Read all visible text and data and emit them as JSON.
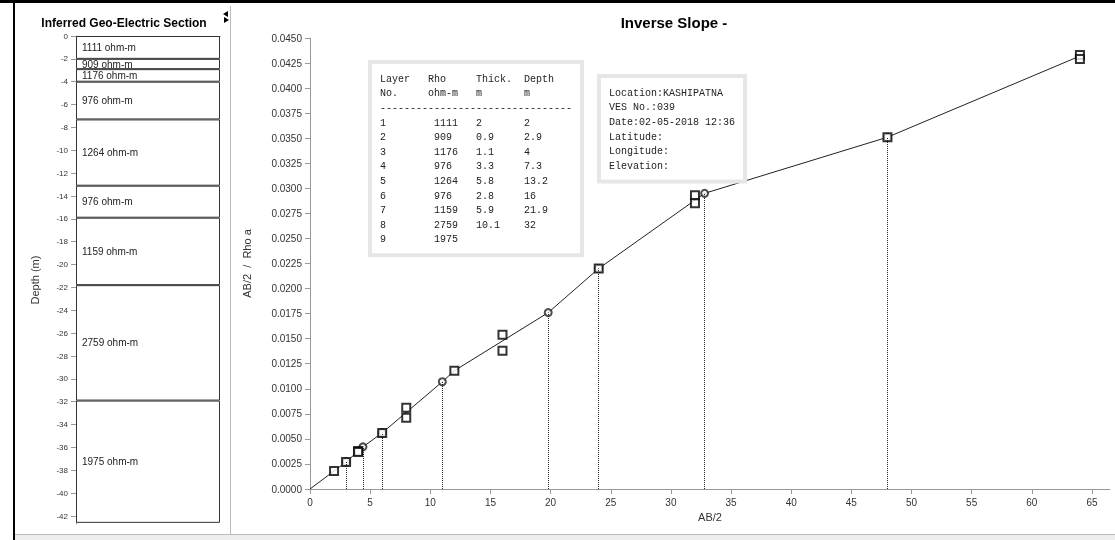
{
  "chart_data": [
    {
      "type": "bar",
      "title": "Inferred Geo-Electric Section",
      "ylabel": "Depth (m)",
      "categories": [
        null
      ],
      "stacked": true,
      "ylim": [
        -42.7,
        0
      ],
      "yticks": [
        0,
        -2,
        -4,
        -6,
        -8,
        -10,
        -12,
        -14,
        -16,
        -18,
        -20,
        -22,
        -24,
        -26,
        -28,
        -30,
        -32,
        -34,
        -36,
        -38,
        -40,
        -42
      ],
      "series": [
        {
          "name": "1111 ohm-m",
          "color": "#ffffff",
          "values": [
            -2
          ]
        },
        {
          "name": "909 ohm-m",
          "color": "#ffffff",
          "values": [
            -0.9
          ]
        },
        {
          "name": "1176 ohm-m",
          "color": "#ffffff",
          "values": [
            -1.1
          ]
        },
        {
          "name": "976 ohm-m",
          "color": "#ffffff",
          "values": [
            -3.3
          ]
        },
        {
          "name": "1264 ohm-m",
          "color": "#ffffff",
          "values": [
            -5.8
          ]
        },
        {
          "name": "976 ohm-m",
          "color": "#ffffff",
          "values": [
            -2.8
          ]
        },
        {
          "name": "1159 ohm-m",
          "color": "#ffffff",
          "values": [
            -5.9
          ]
        },
        {
          "name": "2759 ohm-m",
          "color": "#ffffff",
          "values": [
            -10.1
          ]
        },
        {
          "name": "1975 ohm-m",
          "color": "#ffffff",
          "values": [
            -10.7
          ]
        }
      ]
    },
    {
      "type": "line",
      "title": "Inverse Slope -",
      "xlabel": "AB/2",
      "ylabel": "AB/2  /  Rho a",
      "annotations": [
        "Layer   Rho     Thick.  Depth\nNo.     ohm-m   m       m\n--------------------------------\n1        1111   2       2\n2        909    0.9     2.9\n3        1176   1.1     4\n4        976    3.3     7.3\n5        1264   5.8     13.2\n6        976    2.8     16\n7        1159   5.9     21.9\n8        2759   10.1    32\n9        1975",
        "Location:KASHIPATNA\nVES No.:039\nDate:02-05-2018 12:36\nLatitude:\nLongitude:\nElevation:"
      ],
      "xlim": [
        0,
        66.5
      ],
      "xticks": [
        0,
        5,
        10,
        15,
        20,
        25,
        30,
        35,
        40,
        45,
        50,
        55,
        60,
        65
      ],
      "ylim": [
        0,
        0.045
      ],
      "yticks": [
        {
          "value": 0,
          "label": "0.0000"
        },
        {
          "value": 0.0025,
          "label": "0.0025"
        },
        {
          "value": 0.005,
          "label": "0.0050"
        },
        {
          "value": 0.0075,
          "label": "0.0075"
        },
        {
          "value": 0.01,
          "label": "0.0100"
        },
        {
          "value": 0.0125,
          "label": "0.0125"
        },
        {
          "value": 0.015,
          "label": "0.0150"
        },
        {
          "value": 0.0175,
          "label": "0.0175"
        },
        {
          "value": 0.02,
          "label": "0.0200"
        },
        {
          "value": 0.0225,
          "label": "0.0225"
        },
        {
          "value": 0.025,
          "label": "0.0250"
        },
        {
          "value": 0.0275,
          "label": "0.0275"
        },
        {
          "value": 0.03,
          "label": "0.0300"
        },
        {
          "value": 0.0325,
          "label": "0.0325"
        },
        {
          "value": 0.035,
          "label": "0.0350"
        },
        {
          "value": 0.0375,
          "label": "0.0375"
        },
        {
          "value": 0.04,
          "label": "0.0400"
        },
        {
          "value": 0.0425,
          "label": "0.0425"
        },
        {
          "value": 0.045,
          "label": "0.0450"
        }
      ],
      "series": [
        {
          "type": "line",
          "color": "#222222",
          "marker": "none",
          "x": [
            0,
            3,
            4.4,
            6,
            11,
            12,
            19.8,
            24,
            32.8,
            48,
            64
          ],
          "values": [
            0,
            0.0027,
            0.0042,
            0.0056,
            0.0107,
            0.0118,
            0.0176,
            0.022,
            0.0295,
            0.0351,
            0.0432
          ]
        },
        {
          "type": "lollipop",
          "color": "#222222",
          "marker": "circle",
          "line_style": "dotted",
          "x": [
            3,
            4.4,
            6,
            11,
            19.8,
            24,
            32.8,
            48
          ],
          "values": [
            0.0027,
            0.0042,
            0.0056,
            0.0107,
            0.0176,
            0.022,
            0.0295,
            0.0351
          ]
        },
        {
          "type": "scatter",
          "color": "#000000",
          "marker": "square",
          "x": [
            2,
            3,
            4,
            4,
            6,
            8,
            8,
            12,
            16,
            16,
            24,
            32,
            32,
            48,
            64,
            64
          ],
          "values": [
            0.0018,
            0.0027,
            0.0038,
            0.0037,
            0.0056,
            0.0081,
            0.0071,
            0.0118,
            0.0154,
            0.0138,
            0.022,
            0.0293,
            0.0285,
            0.0351,
            0.0433,
            0.0429
          ]
        }
      ]
    }
  ]
}
